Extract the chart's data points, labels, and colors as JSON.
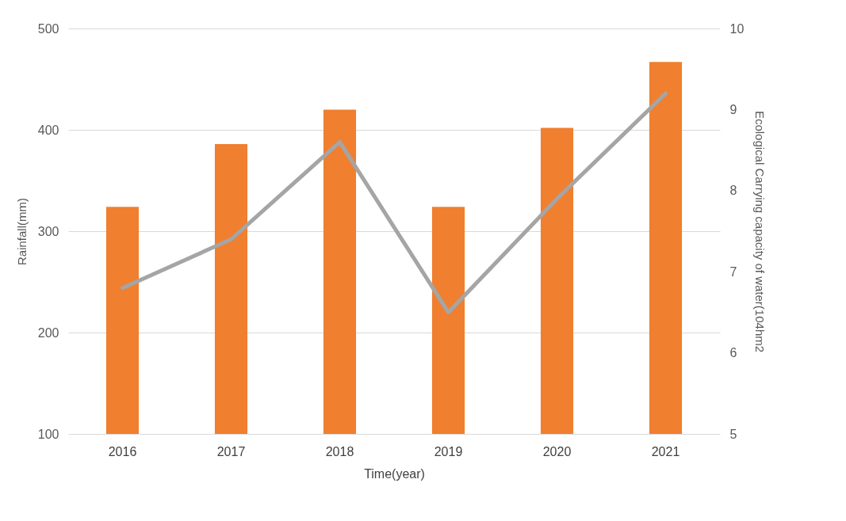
{
  "chart_data": {
    "type": "bar",
    "xlabel": "Time(year)",
    "ylabel": "Rainfall(mm)",
    "y2label": "Ecological Carrying capacity of water(104hm2",
    "categories": [
      "2016",
      "2017",
      "2018",
      "2019",
      "2020",
      "2021"
    ],
    "series": [
      {
        "color": "#f07f2f",
        "values": [
          324,
          386,
          420,
          324,
          402,
          467
        ]
      },
      {
        "type": "line",
        "axis": "y2",
        "color": "#a5a5a5",
        "values": [
          6.8,
          7.4,
          8.6,
          6.5,
          7.9,
          9.2
        ]
      }
    ],
    "ylim": [
      100,
      500
    ],
    "yticks": [
      100,
      200,
      300,
      400,
      500
    ],
    "y2lim": [
      5,
      10
    ],
    "y2ticks": [
      5,
      6,
      7,
      8,
      9,
      10
    ],
    "grid": "y",
    "line_style": "solid",
    "marker": "none"
  }
}
